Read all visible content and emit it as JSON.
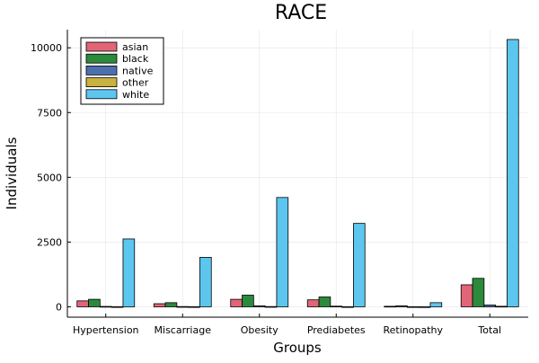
{
  "chart_data": {
    "type": "bar",
    "title": "RACE",
    "xlabel": "Groups",
    "ylabel": "Individuals",
    "categories": [
      "Hypertension",
      "Miscarriage",
      "Obesity",
      "Prediabetes",
      "Retinopathy",
      "Total"
    ],
    "series": [
      {
        "name": "asian",
        "color": "#e26477",
        "values": [
          230,
          120,
          290,
          270,
          20,
          850
        ]
      },
      {
        "name": "black",
        "color": "#2b8a3b",
        "values": [
          290,
          160,
          450,
          380,
          40,
          1100
        ]
      },
      {
        "name": "native",
        "color": "#4c6fae",
        "values": [
          15,
          10,
          40,
          25,
          5,
          70
        ]
      },
      {
        "name": "other",
        "color": "#c9b23e",
        "values": [
          5,
          5,
          10,
          5,
          2,
          20
        ]
      },
      {
        "name": "white",
        "color": "#5cc6ee",
        "values": [
          2620,
          1910,
          4220,
          3220,
          160,
          10320
        ]
      }
    ],
    "ylim": [
      -400,
      10700
    ],
    "yticks": [
      0,
      2500,
      5000,
      7500,
      10000
    ],
    "grid": true,
    "legend_position": "top-left"
  }
}
